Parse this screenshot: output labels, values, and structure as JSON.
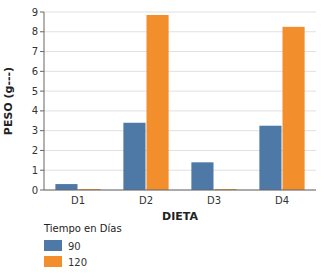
{
  "chart_data": {
    "type": "bar",
    "categories": [
      "D1",
      "D2",
      "D3",
      "D4"
    ],
    "series": [
      {
        "name": "90",
        "values": [
          0.3,
          3.4,
          1.4,
          3.25
        ]
      },
      {
        "name": "120",
        "values": [
          0.05,
          8.85,
          0.05,
          8.25
        ]
      }
    ],
    "xlabel": "DIETA",
    "ylabel": "PESO (g---)",
    "legend_title": "Tiempo en Días",
    "ylim": [
      0,
      9
    ],
    "yticks": [
      0,
      1,
      2,
      3,
      4,
      5,
      6,
      7,
      8,
      9
    ],
    "grid": true,
    "legend": "bottom"
  }
}
